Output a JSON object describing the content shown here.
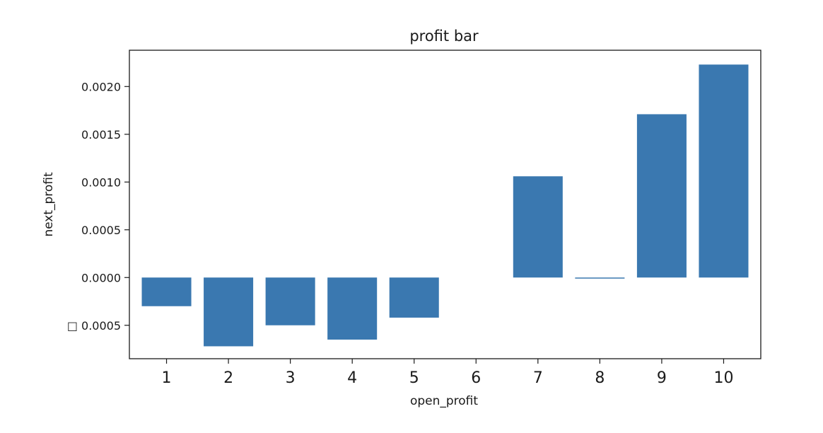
{
  "chart_data": {
    "type": "bar",
    "title": "profit bar",
    "xlabel": "open_profit",
    "ylabel": "next_profit",
    "categories": [
      "1",
      "2",
      "3",
      "4",
      "5",
      "6",
      "7",
      "8",
      "9",
      "10"
    ],
    "values": [
      -0.0003,
      -0.00072,
      -0.0005,
      -0.00065,
      -0.00042,
      0.0,
      0.00106,
      -1e-05,
      0.00171,
      0.00223
    ],
    "ylim": [
      -0.00085,
      0.00238
    ],
    "yticks": [
      -0.0005,
      0.0,
      0.0005,
      0.001,
      0.0015,
      0.002
    ],
    "ytick_labels": [
      "□ 0.0005",
      "0.0000",
      "0.0005",
      "0.0010",
      "0.0015",
      "0.0020"
    ],
    "grid": false,
    "legend": "none",
    "bar_color": "#3a78b0"
  }
}
